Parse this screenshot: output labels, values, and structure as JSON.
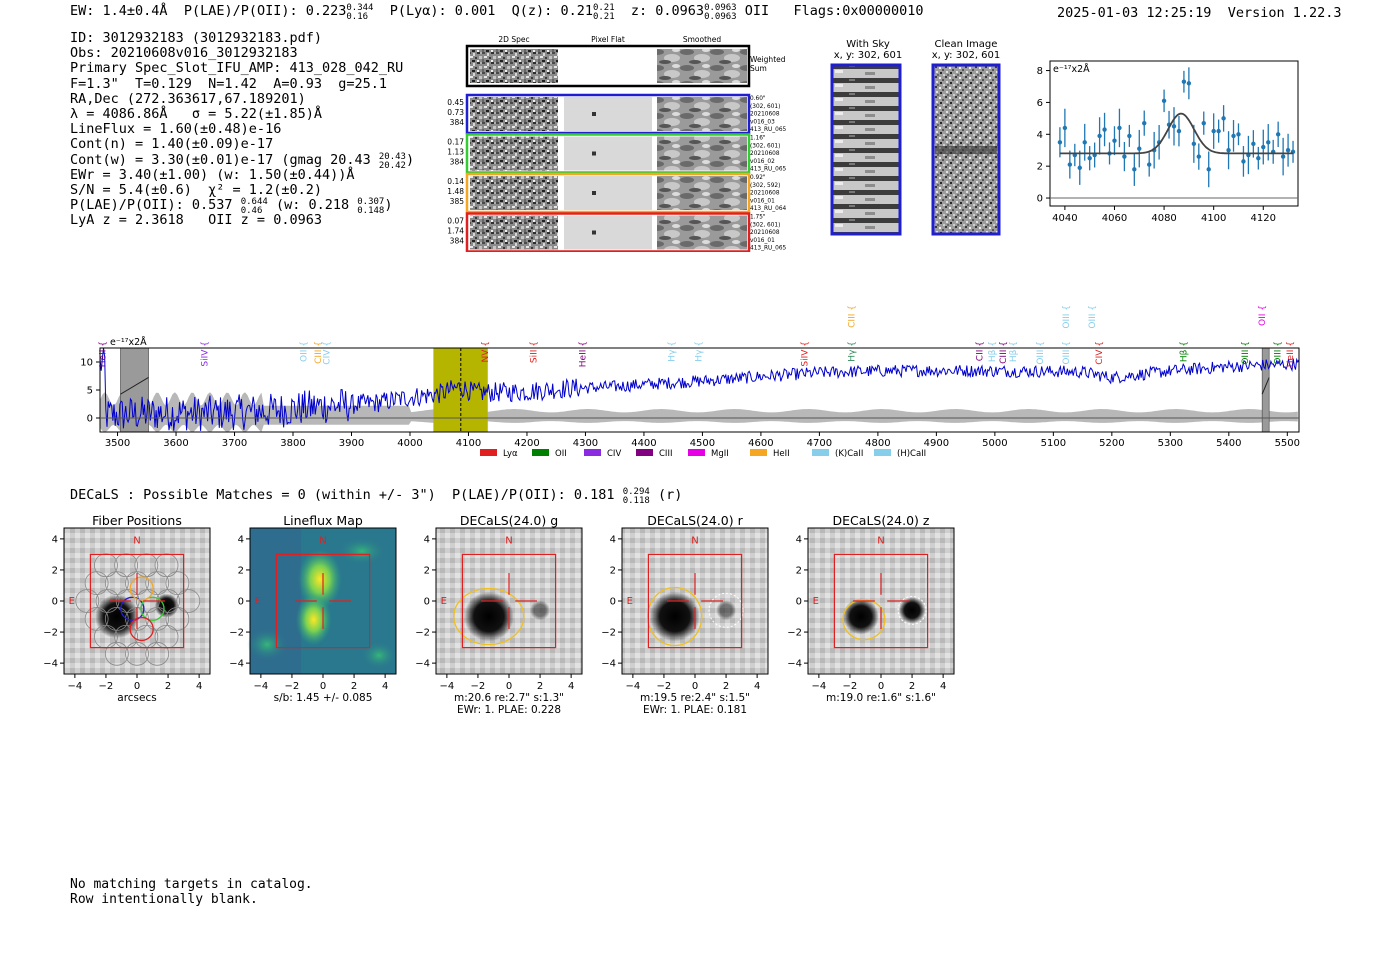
{
  "header": {
    "ew": "EW: 1.4±0.4Å",
    "plae_label": "P(LAE)/P(OII): 0.223",
    "plae_hi": "0.344",
    "plae_lo": "0.16",
    "plya": "P(Lyα): 0.001",
    "q_label": "Q(z): 0.21",
    "q_hi": "0.21",
    "q_lo": "0.21",
    "z_label": "z: 0.0963",
    "z_hi": "0.0963",
    "z_lo": "0.0963",
    "z_line": "OII",
    "flags": "Flags:0x00000010",
    "timestamp": "2025-01-03 12:25:19",
    "version": "Version 1.22.3"
  },
  "info": {
    "id": "ID: 3012932183 (3012932183.pdf)",
    "obs": "Obs: 20210608v016_3012932183",
    "primary": "Primary Spec_Slot_IFU_AMP: 413_028_042_RU",
    "fit_params": "F=1.3\"  T=0.129  N=1.42  A=0.93  g=25.1",
    "radec": "RA,Dec (272.363617,67.189201)",
    "lambda_sigma": "λ = 4086.86Å   σ = 5.22(±1.85)Å",
    "lineflux": "LineFlux = 1.60(±0.48)e-16",
    "cont_n": "Cont(n) = 1.40(±0.09)e-17",
    "cont_w": "Cont(w) = 3.30(±0.01)e-17 (gmag 20.43",
    "cont_w_hi": "20.43",
    "cont_w_lo": "20.42",
    "ewr": "EWr = 3.40(±1.00) (w: 1.50(±0.44))Å",
    "sn_chi": "S/N = 5.4(±0.6)  χ² = 1.2(±0.2)",
    "plae": "P(LAE)/P(OII): 0.537",
    "plae_hi": "0.644",
    "plae_lo": "0.46",
    "plae_w": "(w: 0.218",
    "plae_w_hi": "0.307",
    "plae_w_lo": "0.148",
    "lya_oii": "LyA z = 2.3618   OII z = 0.0963"
  },
  "fiber_panels": {
    "col_headers": [
      "2D Spec",
      "Pixel Flat",
      "Smoothed"
    ],
    "weighted_sum_label": "Weighted\nSum",
    "rows": [
      {
        "color": "#1f1fd0",
        "left": [
          "0.45",
          "0.73",
          "384"
        ],
        "right": [
          "0.60\"",
          "(302, 601)",
          "20210608",
          "v016_03",
          "413_RU_065"
        ]
      },
      {
        "color": "#33cc33",
        "left": [
          "0.17",
          "1.13",
          "384"
        ],
        "right": [
          "1.16\"",
          "(302, 601)",
          "20210608",
          "v016_02",
          "413_RU_065"
        ]
      },
      {
        "color": "#f5a623",
        "left": [
          "0.14",
          "1.48",
          "385"
        ],
        "right": [
          "0.92\"",
          "(302, 592)",
          "20210608",
          "v016_01",
          "413_RU_064"
        ]
      },
      {
        "color": "#e02020",
        "left": [
          "0.07",
          "1.74",
          "384"
        ],
        "right": [
          "1.75\"",
          "(302, 601)",
          "20210608",
          "v016_01",
          "413_RU_065"
        ]
      }
    ],
    "with_sky_title": "With Sky",
    "with_sky_xy": "x, y: 302, 601",
    "clean_title": "Clean Image",
    "clean_xy": "x, y: 302, 601"
  },
  "colors": {
    "spectrum": "#0000cc",
    "fit_points": "#1f77b4",
    "fit_curve": "#444444",
    "highlight": "#b5b500",
    "error_band": "#b0b0b0"
  },
  "chart_data": [
    {
      "type": "scatter",
      "name": "line-fit-zoom",
      "ylabel": "e⁻¹⁷x2Å",
      "xlim": [
        4034,
        4134
      ],
      "ylim": [
        -0.5,
        8.6
      ],
      "xticks": [
        4040,
        4060,
        4080,
        4100,
        4120
      ],
      "yticks": [
        0,
        2,
        4,
        6,
        8
      ],
      "continuum": 2.8,
      "gauss_center": 4086.86,
      "gauss_sigma": 5.22,
      "gauss_amp": 2.5,
      "x": [
        4038,
        4040,
        4042,
        4044,
        4046,
        4048,
        4050,
        4052,
        4054,
        4056,
        4058,
        4060,
        4062,
        4064,
        4066,
        4068,
        4070,
        4072,
        4074,
        4076,
        4078,
        4080,
        4082,
        4084,
        4086,
        4088,
        4090,
        4092,
        4094,
        4096,
        4098,
        4100,
        4102,
        4104,
        4106,
        4108,
        4110,
        4112,
        4114,
        4116,
        4118,
        4120,
        4122,
        4124,
        4126,
        4128,
        4130,
        4132
      ],
      "y": [
        3.5,
        4.4,
        2.1,
        2.7,
        1.9,
        3.5,
        2.5,
        2.7,
        3.9,
        4.3,
        2.8,
        3.6,
        4.4,
        2.6,
        3.9,
        1.8,
        3.1,
        4.7,
        2.1,
        3.0,
        3.5,
        6.1,
        4.6,
        4.5,
        4.2,
        7.3,
        7.2,
        3.4,
        2.6,
        4.7,
        1.8,
        4.2,
        4.2,
        5.0,
        3.0,
        3.9,
        4.0,
        2.3,
        2.7,
        3.4,
        2.5,
        3.2,
        3.5,
        2.9,
        4.0,
        2.6,
        3.0,
        2.9
      ],
      "yerr": 1.05
    },
    {
      "type": "line",
      "name": "full-spectrum",
      "ylabel": "e⁻¹⁷x2Å",
      "xlim": [
        3470,
        5520
      ],
      "ylim": [
        -2.5,
        12.5
      ],
      "xticks": [
        3500,
        3600,
        3700,
        3800,
        3900,
        4000,
        4100,
        4200,
        4300,
        4400,
        4500,
        4600,
        4700,
        4800,
        4900,
        5000,
        5100,
        5200,
        5300,
        5400,
        5500
      ],
      "yticks": [
        0,
        5,
        10
      ],
      "highlight_range": [
        4040,
        4133
      ],
      "dashed_line": 4086.86,
      "masked_ranges": [
        [
          3505,
          3553
        ],
        [
          5457,
          5469
        ]
      ],
      "anchors_x": [
        3480,
        3520,
        3560,
        3600,
        3650,
        3700,
        3750,
        3800,
        3850,
        3900,
        3950,
        4000,
        4050,
        4086,
        4110,
        4150,
        4200,
        4250,
        4300,
        4350,
        4400,
        4500,
        4600,
        4700,
        4800,
        4900,
        5000,
        5100,
        5150,
        5200,
        5300,
        5400,
        5500,
        5520
      ],
      "anchors_y": [
        0.5,
        0.7,
        0.8,
        0.9,
        0.8,
        1.0,
        1.2,
        1.6,
        2.1,
        2.4,
        2.8,
        3.7,
        4.3,
        5.6,
        4.5,
        4.6,
        4.7,
        5.2,
        5.4,
        5.6,
        6.0,
        6.6,
        7.4,
        8.1,
        8.4,
        8.5,
        8.4,
        8.3,
        8.2,
        7.2,
        8.4,
        9.2,
        9.6,
        9.7
      ],
      "line_labels": [
        {
          "text": "HeII",
          "x": 3479,
          "row": 2,
          "color": "#800080"
        },
        {
          "text": "SiIV",
          "x": 3654,
          "row": 2,
          "color": "#8a2be2"
        },
        {
          "text": "OII",
          "x": 3823,
          "row": 2,
          "color": "#87ceeb"
        },
        {
          "text": "CIII",
          "x": 3848,
          "row": 2,
          "color": "#f5a623"
        },
        {
          "text": "CIV",
          "x": 3862,
          "row": 2,
          "color": "#87ceeb"
        },
        {
          "text": "NV",
          "x": 4133,
          "row": 2,
          "color": "#e02020"
        },
        {
          "text": "SiII",
          "x": 4216,
          "row": 2,
          "color": "#e02020"
        },
        {
          "text": "HeII",
          "x": 4300,
          "row": 2,
          "color": "#800080"
        },
        {
          "text": "Hγ",
          "x": 4452,
          "row": 2,
          "color": "#87ceeb"
        },
        {
          "text": "Hγ",
          "x": 4498,
          "row": 2,
          "color": "#87ceeb"
        },
        {
          "text": "SiIV",
          "x": 4680,
          "row": 2,
          "color": "#e02020"
        },
        {
          "text": "CIII",
          "x": 4760,
          "row": 1,
          "color": "#f5a623"
        },
        {
          "text": "Hγ",
          "x": 4760,
          "row": 2,
          "color": "#2e8b57"
        },
        {
          "text": "CII",
          "x": 4979,
          "row": 2,
          "color": "#800080"
        },
        {
          "text": "Hβ",
          "x": 5000,
          "row": 2,
          "color": "#87ceeb"
        },
        {
          "text": "CIII",
          "x": 5019,
          "row": 2,
          "color": "#800080"
        },
        {
          "text": "Hβ",
          "x": 5036,
          "row": 2,
          "color": "#87ceeb"
        },
        {
          "text": "OIII",
          "x": 5082,
          "row": 2,
          "color": "#87ceeb"
        },
        {
          "text": "OIII",
          "x": 5127,
          "row": 1,
          "color": "#87ceeb"
        },
        {
          "text": "OIII",
          "x": 5127,
          "row": 2,
          "color": "#87ceeb"
        },
        {
          "text": "OIII",
          "x": 5171,
          "row": 1,
          "color": "#87ceeb"
        },
        {
          "text": "CIV",
          "x": 5183,
          "row": 2,
          "color": "#e02020"
        },
        {
          "text": "Hβ",
          "x": 5328,
          "row": 2,
          "color": "#008000"
        },
        {
          "text": "OIII",
          "x": 5433,
          "row": 2,
          "color": "#008000"
        },
        {
          "text": "OII",
          "x": 5462,
          "row": 1,
          "color": "#e600e6"
        },
        {
          "text": "OIII",
          "x": 5488,
          "row": 2,
          "color": "#008000"
        },
        {
          "text": "HeII",
          "x": 5510,
          "row": 2,
          "color": "#e02020"
        }
      ],
      "legend": [
        {
          "label": "Lyα",
          "color": "#e02020"
        },
        {
          "label": "OII",
          "color": "#008000"
        },
        {
          "label": "CIV",
          "color": "#8a2be2"
        },
        {
          "label": "CIII",
          "color": "#800080"
        },
        {
          "label": "MgII",
          "color": "#e600e6"
        },
        {
          "label": "HeII",
          "color": "#f5a623"
        },
        {
          "label": "(K)CaII",
          "color": "#87ceeb"
        },
        {
          "label": "(H)CaII",
          "color": "#87ceeb"
        }
      ]
    }
  ],
  "cutouts": {
    "summary": "DECaLS : Possible Matches = 0 (within +/- 3\")  P(LAE)/P(OII): 0.181",
    "summary_hi": "0.294",
    "summary_lo": "0.118",
    "summary_band": "(r)",
    "ticks": [
      -4,
      -2,
      0,
      2,
      4
    ],
    "north_label": "N",
    "east_label": "E",
    "panels": [
      {
        "title": "Fiber Positions",
        "caption1": "arcsecs",
        "caption2": ""
      },
      {
        "title": "Lineflux Map",
        "caption1": "s/b: 1.45 +/- 0.085",
        "caption2": ""
      },
      {
        "title": "DECaLS(24.0) g",
        "caption1": "m:20.6  re:2.7\"  s:1.3\"",
        "caption2": "EWr: 1. PLAE: 0.228"
      },
      {
        "title": "DECaLS(24.0) r",
        "caption1": "m:19.5  re:2.4\"  s:1.5\"",
        "caption2": "EWr: 1. PLAE: 0.181"
      },
      {
        "title": "DECaLS(24.0) z",
        "caption1": "m:19.0  re:1.6\"  s:1.6\"",
        "caption2": ""
      }
    ]
  },
  "footer": {
    "line1": "No matching targets in catalog.",
    "line2": "Row intentionally blank."
  }
}
